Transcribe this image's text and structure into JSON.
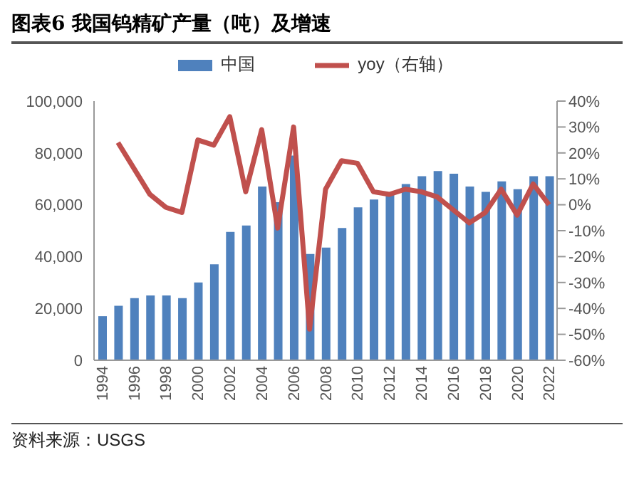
{
  "chart_data": {
    "type": "bar",
    "title": "图表6 我国钨精矿产量（吨）及增速",
    "categories": [
      "1994",
      null,
      "1996",
      null,
      "1998",
      null,
      "2000",
      null,
      "2002",
      null,
      "2004",
      null,
      "2006",
      null,
      "2008",
      null,
      "2010",
      null,
      "2012",
      null,
      "2014",
      null,
      "2016",
      null,
      "2018",
      null,
      "2020",
      null,
      "2022"
    ],
    "series": [
      {
        "name": "中国",
        "color": "#4f81bd",
        "values": [
          17000,
          21000,
          24000,
          25000,
          25000,
          24000,
          30000,
          37000,
          49500,
          52000,
          67000,
          61000,
          79000,
          41000,
          43500,
          51000,
          59000,
          62000,
          64000,
          68000,
          71000,
          73000,
          72000,
          67000,
          65000,
          69000,
          66000,
          71000,
          71000
        ]
      },
      {
        "name": "yoy（右轴）",
        "type": "line",
        "axis": "y2",
        "color": "#c0504d",
        "values": [
          null,
          24,
          14,
          4,
          -1,
          -3,
          25,
          23,
          34,
          5,
          29,
          -9,
          30,
          -48,
          6,
          17,
          16,
          5,
          4,
          6,
          5,
          3,
          -2,
          -7,
          -3,
          6,
          -4,
          8,
          0
        ]
      }
    ],
    "ylim": [
      0,
      100000
    ],
    "yticks": [
      0,
      {
        "value": 20000,
        "label": "20,000"
      },
      {
        "value": 40000,
        "label": "40,000"
      },
      {
        "value": 60000,
        "label": "60,000"
      },
      {
        "value": 80000,
        "label": "80,000"
      },
      {
        "value": 100000,
        "label": "100,000"
      }
    ],
    "y2lim": [
      -60,
      40
    ],
    "y2ticks": [
      {
        "value": -60,
        "label": "-60%"
      },
      {
        "value": -50,
        "label": "-50%"
      },
      {
        "value": -40,
        "label": "-40%"
      },
      {
        "value": -30,
        "label": "-30%"
      },
      {
        "value": -20,
        "label": "-20%"
      },
      {
        "value": -10,
        "label": "-10%"
      },
      {
        "value": 0,
        "label": "0%"
      },
      {
        "value": 10,
        "label": "10%"
      },
      {
        "value": 20,
        "label": "20%"
      },
      {
        "value": 30,
        "label": "30%"
      },
      {
        "value": 40,
        "label": "40%"
      }
    ],
    "legend": "top",
    "marker": "none",
    "line_style": "solid",
    "annotations": [
      "资料来源：USGS"
    ]
  }
}
